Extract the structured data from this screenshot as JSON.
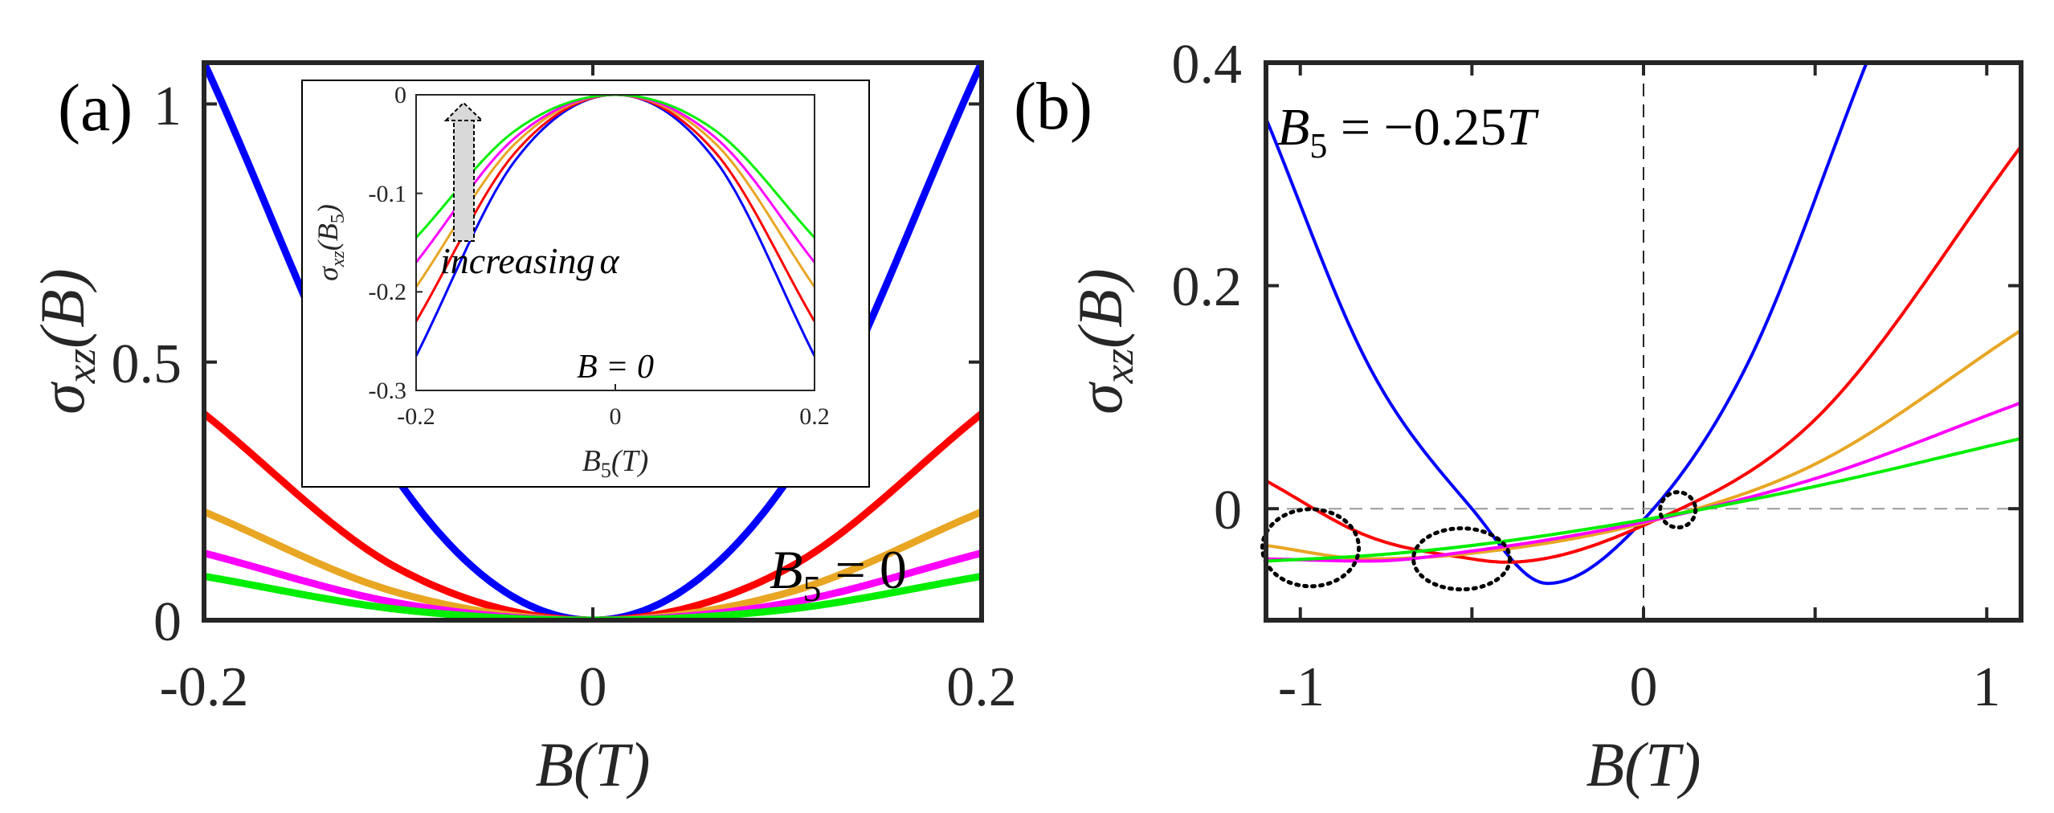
{
  "colors": {
    "blue": "#0000ff",
    "red": "#ff0000",
    "orange": "#e8a623",
    "magenta": "#ff00ff",
    "green": "#00ee00",
    "axis": "#262626"
  },
  "panel_labels": {
    "a": "(a)",
    "b": "(b)"
  },
  "chart_data": [
    {
      "type": "line",
      "panel": "(a)",
      "ylabel": "σxz(B)",
      "xlabel": "B(T)",
      "xlim": [
        -0.2,
        0.2
      ],
      "ylim": [
        0,
        1.08
      ],
      "xticks": [
        "-0.2",
        "0",
        "0.2"
      ],
      "yticks": [
        "0",
        "0.5",
        "1"
      ],
      "annotation": {
        "lhs": "B",
        "sub": "5",
        "rhs": " = 0"
      },
      "series": [
        {
          "color_key": "blue",
          "x": [
            -0.2,
            -0.1,
            0,
            0.1,
            0.2
          ],
          "y": [
            1.08,
            0.27,
            0.0,
            0.27,
            1.08
          ]
        },
        {
          "color_key": "red",
          "x": [
            -0.2,
            -0.1,
            0,
            0.1,
            0.2
          ],
          "y": [
            0.4,
            0.1,
            0.0,
            0.1,
            0.4
          ]
        },
        {
          "color_key": "orange",
          "x": [
            -0.2,
            -0.1,
            0,
            0.1,
            0.2
          ],
          "y": [
            0.21,
            0.053,
            0.0,
            0.053,
            0.21
          ]
        },
        {
          "color_key": "magenta",
          "x": [
            -0.2,
            -0.1,
            0,
            0.1,
            0.2
          ],
          "y": [
            0.13,
            0.033,
            0.0,
            0.033,
            0.13
          ]
        },
        {
          "color_key": "green",
          "x": [
            -0.2,
            -0.1,
            0,
            0.1,
            0.2
          ],
          "y": [
            0.085,
            0.021,
            0.0,
            0.021,
            0.085
          ]
        }
      ],
      "inset": {
        "type": "line",
        "ylabel": "σxz(B5)",
        "xlabel": "B5(T)",
        "xlim": [
          -0.2,
          0.2
        ],
        "ylim": [
          -0.3,
          0
        ],
        "xticks": [
          "-0.2",
          "0",
          "0.2"
        ],
        "yticks": [
          "0",
          "-0.1",
          "-0.2",
          "-0.3"
        ],
        "annotation": "B = 0",
        "arrow_text": "increasing",
        "arrow_symbol": "α",
        "series": [
          {
            "color_key": "blue",
            "x": [
              -0.2,
              -0.1,
              0,
              0.1,
              0.2
            ],
            "y": [
              -0.265,
              -0.066,
              0.0,
              -0.066,
              -0.265
            ]
          },
          {
            "color_key": "red",
            "x": [
              -0.2,
              -0.1,
              0,
              0.1,
              0.2
            ],
            "y": [
              -0.23,
              -0.058,
              0.0,
              -0.058,
              -0.23
            ]
          },
          {
            "color_key": "orange",
            "x": [
              -0.2,
              -0.1,
              0,
              0.1,
              0.2
            ],
            "y": [
              -0.195,
              -0.049,
              0.0,
              -0.049,
              -0.195
            ]
          },
          {
            "color_key": "magenta",
            "x": [
              -0.2,
              -0.1,
              0,
              0.1,
              0.2
            ],
            "y": [
              -0.17,
              -0.043,
              0.0,
              -0.043,
              -0.17
            ]
          },
          {
            "color_key": "green",
            "x": [
              -0.2,
              -0.1,
              0,
              0.1,
              0.2
            ],
            "y": [
              -0.145,
              -0.036,
              0.0,
              -0.036,
              -0.145
            ]
          }
        ]
      }
    },
    {
      "type": "line",
      "panel": "(b)",
      "ylabel": "σxz(B)",
      "xlabel": "B(T)",
      "xlim": [
        -1.1,
        1.1
      ],
      "ylim": [
        -0.1,
        0.4
      ],
      "xticks": [
        "-1",
        "0",
        "1"
      ],
      "yticks": [
        "0",
        "0.2",
        "0.4"
      ],
      "annotation": {
        "lhs": "B",
        "sub": "5",
        "rhs": " = −0.25",
        "unit": "T"
      },
      "series": [
        {
          "color_key": "blue",
          "x": [
            -1.1,
            -0.8,
            -0.5,
            -0.28,
            0,
            0.3,
            0.65
          ],
          "y": [
            0.35,
            0.128,
            0.0,
            -0.067,
            -0.01,
            0.128,
            0.4
          ]
        },
        {
          "color_key": "red",
          "x": [
            -1.1,
            -0.8,
            -0.5,
            -0.4,
            0,
            0.5,
            1.1
          ],
          "y": [
            0.025,
            -0.025,
            -0.045,
            -0.048,
            -0.015,
            0.08,
            0.325
          ]
        },
        {
          "color_key": "orange",
          "x": [
            -1.1,
            -0.8,
            -0.5,
            0,
            0.5,
            1.1
          ],
          "y": [
            -0.033,
            -0.045,
            -0.04,
            -0.013,
            0.04,
            0.16
          ]
        },
        {
          "color_key": "magenta",
          "x": [
            -1.1,
            -0.8,
            -0.5,
            0,
            0.5,
            1.1
          ],
          "y": [
            -0.045,
            -0.047,
            -0.038,
            -0.012,
            0.027,
            0.095
          ]
        },
        {
          "color_key": "green",
          "x": [
            -1.1,
            -0.8,
            -0.5,
            0,
            0.5,
            1.1
          ],
          "y": [
            -0.047,
            -0.042,
            -0.033,
            -0.01,
            0.02,
            0.063
          ]
        }
      ],
      "highlights": [
        {
          "x": -0.97,
          "y": -0.035
        },
        {
          "x": -0.53,
          "y": -0.045
        },
        {
          "x": 0.1,
          "y": -0.001
        }
      ]
    }
  ]
}
